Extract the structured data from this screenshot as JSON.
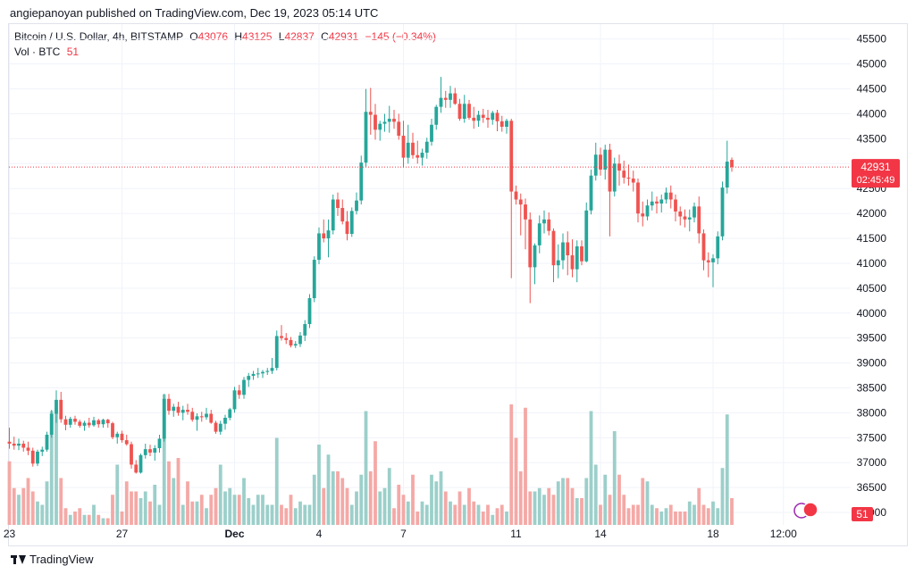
{
  "publisher_line": "angiepanoyan published on TradingView.com, Dec 19, 2023 05:14 UTC",
  "legend": {
    "symbol": "Bitcoin / U.S. Dollar, 4h, BITSTAMP",
    "o_label": "O",
    "o_value": "43076",
    "h_label": "H",
    "h_value": "43125",
    "l_label": "L",
    "l_value": "42837",
    "c_label": "C",
    "c_value": "42931",
    "change": "−145 (−0.34%)",
    "vol_label": "Vol · BTC",
    "vol_value": "51"
  },
  "price_label": {
    "value": "42931",
    "countdown": "02:45:49"
  },
  "volume_label": "51",
  "brand": "TradingView",
  "colors": {
    "up": "#26a69a",
    "down": "#ef5350",
    "vol_up": "#9ccfca",
    "vol_down": "#f4a9a6",
    "grid": "#f0f3fa",
    "last_price": "#f23645"
  },
  "chart_data": {
    "type": "candlestick",
    "title": "Bitcoin / U.S. Dollar, 4h, BITSTAMP",
    "interval": "4h",
    "y_ticks": [
      36000,
      36500,
      37000,
      37500,
      38000,
      38500,
      39000,
      39500,
      40000,
      40500,
      41000,
      41500,
      42000,
      42500,
      43000,
      43500,
      44000,
      44500,
      45000,
      45500
    ],
    "y_tick_labels": [
      "36000",
      "36500",
      "37000",
      "37500",
      "38000",
      "38500",
      "39000",
      "39500",
      "40000",
      "40500",
      "41000",
      "41500",
      "42000",
      "42500",
      "43000",
      "43500",
      "44000",
      "44500",
      "45000",
      "45500"
    ],
    "ylim": [
      35750,
      45800
    ],
    "x_ticks": [
      {
        "bar": 0,
        "label": "23"
      },
      {
        "bar": 24,
        "label": "27"
      },
      {
        "bar": 48,
        "label": "Dec"
      },
      {
        "bar": 66,
        "label": "4"
      },
      {
        "bar": 84,
        "label": "7"
      },
      {
        "bar": 108,
        "label": "11"
      },
      {
        "bar": 126,
        "label": "14"
      },
      {
        "bar": 150,
        "label": "18"
      },
      {
        "bar": 165,
        "label": "12:00"
      }
    ],
    "last_price": 42931,
    "ohlcv": [
      [
        37420,
        37700,
        37280,
        37380,
        1.9
      ],
      [
        37380,
        37520,
        37260,
        37340,
        1.1
      ],
      [
        37340,
        37480,
        37250,
        37380,
        0.9
      ],
      [
        37380,
        37440,
        37220,
        37300,
        1.1
      ],
      [
        37300,
        37420,
        37150,
        37240,
        1.4
      ],
      [
        37240,
        37300,
        36920,
        36980,
        1.0
      ],
      [
        36980,
        37260,
        36930,
        37220,
        0.7
      ],
      [
        37220,
        37320,
        37130,
        37260,
        0.6
      ],
      [
        37260,
        37620,
        37220,
        37560,
        1.3
      ],
      [
        37560,
        38060,
        37500,
        37980,
        3.4
      ],
      [
        37980,
        38450,
        37800,
        38260,
        3.5
      ],
      [
        38260,
        38420,
        37800,
        37870,
        1.4
      ],
      [
        37870,
        37940,
        37650,
        37760,
        0.5
      ],
      [
        37760,
        37920,
        37700,
        37880,
        0.3
      ],
      [
        37880,
        37940,
        37760,
        37820,
        0.4
      ],
      [
        37820,
        37860,
        37700,
        37740,
        0.5
      ],
      [
        37740,
        37840,
        37640,
        37800,
        0.3
      ],
      [
        37800,
        37900,
        37700,
        37750,
        0.3
      ],
      [
        37750,
        37920,
        37720,
        37850,
        0.6
      ],
      [
        37850,
        37880,
        37700,
        37770,
        0.3
      ],
      [
        37770,
        37880,
        37700,
        37860,
        0.2
      ],
      [
        37860,
        37880,
        37700,
        37790,
        0.2
      ],
      [
        37790,
        37820,
        37470,
        37510,
        0.9
      ],
      [
        37510,
        37620,
        37380,
        37580,
        1.8
      ],
      [
        37580,
        37640,
        37400,
        37450,
        0.4
      ],
      [
        37450,
        37560,
        37340,
        37370,
        1.3
      ],
      [
        37370,
        37420,
        36880,
        36960,
        1.0
      ],
      [
        36960,
        37050,
        36780,
        36800,
        1.0
      ],
      [
        36800,
        37180,
        36780,
        37150,
        0.8
      ],
      [
        37150,
        37380,
        37080,
        37270,
        1.0
      ],
      [
        37270,
        37360,
        37130,
        37200,
        0.7
      ],
      [
        37200,
        37350,
        37040,
        37290,
        1.2
      ],
      [
        37290,
        37560,
        37200,
        37480,
        0.6
      ],
      [
        37480,
        38380,
        37420,
        38280,
        3.9
      ],
      [
        38280,
        38380,
        37960,
        38040,
        1.9
      ],
      [
        38040,
        38180,
        37920,
        38120,
        1.4
      ],
      [
        38120,
        38220,
        37940,
        38000,
        2.0
      ],
      [
        38000,
        38140,
        37850,
        38060,
        0.6
      ],
      [
        38060,
        38180,
        37960,
        38020,
        1.3
      ],
      [
        38020,
        38100,
        37820,
        37860,
        0.7
      ],
      [
        37860,
        37990,
        37640,
        37930,
        0.7
      ],
      [
        37930,
        38020,
        37820,
        37910,
        0.9
      ],
      [
        37910,
        38100,
        37860,
        37980,
        0.5
      ],
      [
        37980,
        38060,
        37780,
        37800,
        0.9
      ],
      [
        37800,
        37840,
        37580,
        37620,
        1.1
      ],
      [
        37620,
        37840,
        37560,
        37780,
        1.8
      ],
      [
        37780,
        37960,
        37660,
        37900,
        1.0
      ],
      [
        37900,
        38100,
        37850,
        38070,
        1.1
      ],
      [
        38070,
        38520,
        38000,
        38450,
        0.9
      ],
      [
        38450,
        38560,
        38280,
        38360,
        0.9
      ],
      [
        38360,
        38720,
        38280,
        38660,
        1.4
      ],
      [
        38660,
        38800,
        38520,
        38740,
        0.8
      ],
      [
        38740,
        38840,
        38660,
        38780,
        0.6
      ],
      [
        38780,
        38900,
        38700,
        38790,
        0.9
      ],
      [
        38790,
        38860,
        38700,
        38820,
        0.9
      ],
      [
        38820,
        38900,
        38760,
        38840,
        0.6
      ],
      [
        38840,
        39100,
        38780,
        38900,
        0.6
      ],
      [
        38900,
        39650,
        38850,
        39540,
        2.6
      ],
      [
        39540,
        39760,
        39450,
        39500,
        0.6
      ],
      [
        39500,
        39600,
        39380,
        39460,
        0.5
      ],
      [
        39460,
        39520,
        39310,
        39350,
        0.9
      ],
      [
        39350,
        39440,
        39300,
        39380,
        0.5
      ],
      [
        39380,
        39620,
        39320,
        39550,
        0.7
      ],
      [
        39550,
        39860,
        39440,
        39780,
        0.6
      ],
      [
        39780,
        40380,
        39700,
        40300,
        0.6
      ],
      [
        40300,
        41140,
        40220,
        41070,
        1.5
      ],
      [
        41070,
        41720,
        40980,
        41600,
        2.4
      ],
      [
        41600,
        41880,
        41420,
        41500,
        1.1
      ],
      [
        41500,
        41880,
        41120,
        41660,
        2.1
      ],
      [
        41660,
        42380,
        41580,
        42280,
        1.6
      ],
      [
        42280,
        42420,
        41950,
        42110,
        1.6
      ],
      [
        42110,
        42280,
        41780,
        41840,
        1.4
      ],
      [
        41840,
        42050,
        41460,
        41590,
        1.1
      ],
      [
        41590,
        42120,
        41530,
        42050,
        0.6
      ],
      [
        42050,
        42420,
        41980,
        42260,
        1.0
      ],
      [
        42260,
        43160,
        42180,
        43020,
        1.5
      ],
      [
        43020,
        44500,
        42940,
        44040,
        3.4
      ],
      [
        44040,
        44520,
        43580,
        43980,
        1.6
      ],
      [
        43980,
        44200,
        43480,
        43680,
        2.5
      ],
      [
        43680,
        43860,
        43460,
        43800,
        1.0
      ],
      [
        43800,
        44000,
        43640,
        43840,
        1.1
      ],
      [
        43840,
        44160,
        43620,
        43900,
        1.7
      ],
      [
        43900,
        44080,
        43700,
        43840,
        0.5
      ],
      [
        43840,
        44000,
        43480,
        43560,
        1.2
      ],
      [
        43560,
        43860,
        42920,
        43120,
        0.9
      ],
      [
        43120,
        43780,
        43000,
        43420,
        0.7
      ],
      [
        43420,
        43620,
        43100,
        43170,
        1.5
      ],
      [
        43170,
        43460,
        43000,
        43120,
        0.4
      ],
      [
        43120,
        43300,
        42960,
        43220,
        0.7
      ],
      [
        43220,
        43520,
        43100,
        43440,
        0.6
      ],
      [
        43440,
        43900,
        43360,
        43780,
        1.5
      ],
      [
        43780,
        44180,
        43680,
        44140,
        1.3
      ],
      [
        44140,
        44740,
        44020,
        44320,
        1.6
      ],
      [
        44320,
        44460,
        44120,
        44280,
        1.0
      ],
      [
        44280,
        44560,
        44120,
        44410,
        0.7
      ],
      [
        44410,
        44520,
        44180,
        44200,
        0.6
      ],
      [
        44200,
        44300,
        43860,
        43900,
        1.0
      ],
      [
        43900,
        44380,
        43820,
        44200,
        0.6
      ],
      [
        44200,
        44280,
        43880,
        43920,
        1.1
      ],
      [
        43920,
        44140,
        43700,
        43860,
        0.7
      ],
      [
        43860,
        44060,
        43740,
        43980,
        0.6
      ],
      [
        43980,
        44100,
        43820,
        43920,
        0.4
      ],
      [
        43920,
        44080,
        43720,
        43880,
        0.6
      ],
      [
        43880,
        44060,
        43780,
        44020,
        0.3
      ],
      [
        44020,
        44080,
        43650,
        43850,
        0.5
      ],
      [
        43850,
        43960,
        43640,
        43740,
        0.6
      ],
      [
        43740,
        43900,
        43600,
        43860,
        0.4
      ],
      [
        43860,
        43900,
        40700,
        42440,
        3.6
      ],
      [
        42440,
        42560,
        42180,
        42280,
        2.6
      ],
      [
        42280,
        42400,
        41560,
        42180,
        1.6
      ],
      [
        42180,
        42300,
        41280,
        41880,
        3.5
      ],
      [
        41880,
        42020,
        40200,
        40920,
        1.0
      ],
      [
        40920,
        41400,
        40580,
        41360,
        1.0
      ],
      [
        41360,
        41960,
        41200,
        41800,
        1.1
      ],
      [
        41800,
        42060,
        41600,
        41880,
        0.9
      ],
      [
        41880,
        42020,
        41560,
        41650,
        1.1
      ],
      [
        41650,
        41700,
        40620,
        40960,
        0.9
      ],
      [
        40960,
        41380,
        40700,
        41060,
        1.3
      ],
      [
        41060,
        41600,
        40880,
        41420,
        1.4
      ],
      [
        41420,
        41640,
        40760,
        41160,
        1.4
      ],
      [
        41160,
        41480,
        40720,
        40880,
        1.1
      ],
      [
        40880,
        41460,
        40620,
        41340,
        0.8
      ],
      [
        41340,
        41460,
        40960,
        41040,
        0.8
      ],
      [
        41040,
        42220,
        41020,
        42060,
        1.4
      ],
      [
        42060,
        42880,
        41980,
        42760,
        3.4
      ],
      [
        42760,
        43420,
        42660,
        43180,
        1.8
      ],
      [
        43180,
        43320,
        42760,
        42880,
        0.6
      ],
      [
        42880,
        43380,
        42680,
        43280,
        1.5
      ],
      [
        43280,
        43400,
        41540,
        42440,
        0.9
      ],
      [
        42440,
        43120,
        42340,
        43000,
        2.8
      ],
      [
        43000,
        43180,
        42560,
        42860,
        1.5
      ],
      [
        42860,
        43060,
        42600,
        42720,
        0.9
      ],
      [
        42720,
        42980,
        42560,
        42700,
        0.5
      ],
      [
        42700,
        42860,
        42440,
        42620,
        0.6
      ],
      [
        42620,
        42700,
        41820,
        42000,
        0.6
      ],
      [
        42000,
        42240,
        41740,
        41940,
        1.4
      ],
      [
        41940,
        42280,
        41860,
        42160,
        1.3
      ],
      [
        42160,
        42440,
        42060,
        42240,
        0.6
      ],
      [
        42240,
        42340,
        42000,
        42200,
        0.5
      ],
      [
        42200,
        42380,
        42020,
        42280,
        0.4
      ],
      [
        42280,
        42520,
        42200,
        42420,
        0.5
      ],
      [
        42420,
        42560,
        42100,
        42280,
        0.6
      ],
      [
        42280,
        42380,
        41840,
        42040,
        0.4
      ],
      [
        42040,
        42140,
        41760,
        41940,
        0.4
      ],
      [
        41940,
        42080,
        41720,
        41880,
        0.4
      ],
      [
        41880,
        42080,
        41640,
        41920,
        0.7
      ],
      [
        41920,
        42220,
        41820,
        42140,
        0.6
      ],
      [
        42140,
        42340,
        41400,
        41600,
        1.1
      ],
      [
        41600,
        41680,
        40860,
        41060,
        0.6
      ],
      [
        41060,
        41220,
        40720,
        41020,
        0.5
      ],
      [
        41020,
        41180,
        40520,
        41100,
        0.7
      ],
      [
        41100,
        41640,
        40980,
        41540,
        0.5
      ],
      [
        41540,
        42640,
        41460,
        42520,
        1.7
      ],
      [
        42520,
        43460,
        42400,
        43040,
        3.3
      ],
      [
        43076,
        43125,
        42837,
        42931,
        0.8
      ]
    ]
  }
}
